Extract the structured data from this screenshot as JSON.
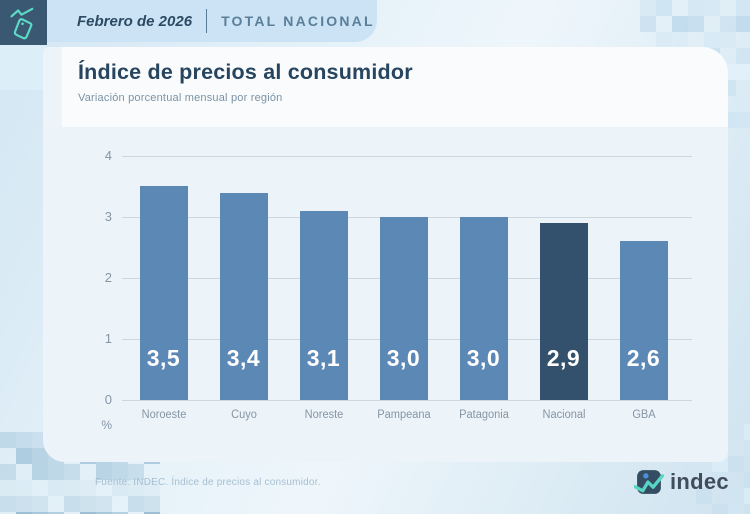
{
  "header": {
    "date_label": "Febrero de 2026",
    "scope_label": "TOTAL NACIONAL"
  },
  "card": {
    "title": "Índice de precios al consumidor",
    "subtitle": "Variación porcentual mensual por región"
  },
  "chart_data": {
    "type": "bar",
    "title": "Índice de precios al consumidor",
    "subtitle": "Variación porcentual mensual por región",
    "categories": [
      "Noroeste",
      "Cuyo",
      "Noreste",
      "Pampeana",
      "Patagonia",
      "Nacional",
      "GBA"
    ],
    "values": [
      3.5,
      3.4,
      3.1,
      3.0,
      3.0,
      2.9,
      2.6
    ],
    "value_labels": [
      "3,5",
      "3,4",
      "3,1",
      "3,0",
      "3,0",
      "2,9",
      "2,6"
    ],
    "highlight_category": "Nacional",
    "bar_color": "#5c88b6",
    "highlight_color": "#33506c",
    "ylabel": "%",
    "ylim": [
      0,
      4
    ],
    "yticks": [
      0,
      1,
      2,
      3,
      4
    ],
    "grid": true,
    "legend": null
  },
  "footer": {
    "source": "Fuente: INDEC. Índice de precios al consumidor.",
    "logo_text": "indec"
  },
  "colors": {
    "accent_teal": "#5bdac6",
    "navy": "#33506c",
    "steel_blue": "#5c88b6",
    "band_blue": "#cbe3f4",
    "title_text": "#27455f",
    "muted_text": "#8695a3"
  }
}
